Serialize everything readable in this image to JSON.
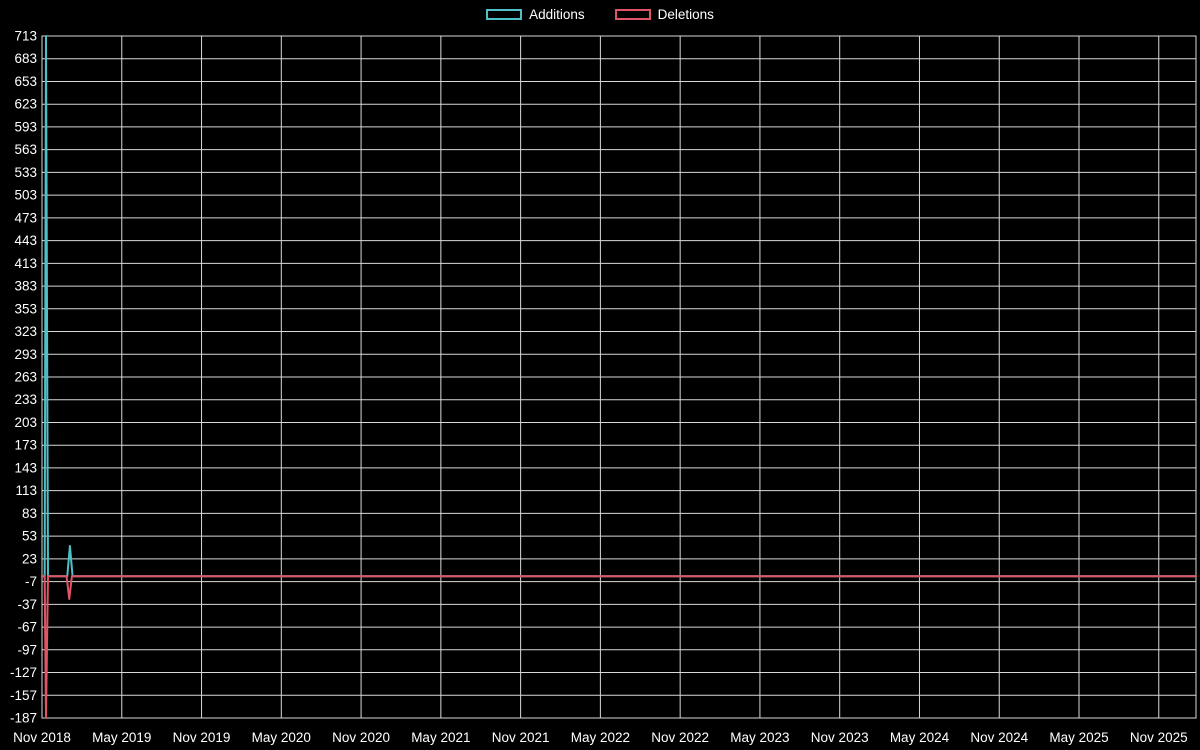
{
  "page": {
    "background": "#000000",
    "text_color": "#ffffff"
  },
  "legend": {
    "items": [
      {
        "label": "Additions",
        "color": "#4fc0c8"
      },
      {
        "label": "Deletions",
        "color": "#e05566"
      }
    ]
  },
  "chart_data": {
    "type": "line",
    "title": "",
    "xlabel": "",
    "ylabel": "",
    "x_unit": "months since Nov 2018",
    "xlim": [
      0,
      86.8
    ],
    "ylim": [
      -187,
      713
    ],
    "y_tick_interval": 30,
    "grid": true,
    "grid_color": "#d9d9d9",
    "legend_position": "top",
    "background": "#000000",
    "y_ticks": [
      713,
      683,
      653,
      623,
      593,
      563,
      533,
      503,
      473,
      443,
      413,
      383,
      353,
      323,
      293,
      263,
      233,
      203,
      173,
      143,
      113,
      83,
      53,
      23,
      -7,
      -37,
      -67,
      -97,
      -127,
      -157,
      -187
    ],
    "x_ticks": [
      {
        "label": "Nov 2018",
        "x": 0
      },
      {
        "label": "May 2019",
        "x": 6
      },
      {
        "label": "Nov 2019",
        "x": 12
      },
      {
        "label": "May 2020",
        "x": 18
      },
      {
        "label": "Nov 2020",
        "x": 24
      },
      {
        "label": "May 2021",
        "x": 30
      },
      {
        "label": "Nov 2021",
        "x": 36
      },
      {
        "label": "May 2022",
        "x": 42
      },
      {
        "label": "Nov 2022",
        "x": 48
      },
      {
        "label": "May 2023",
        "x": 54
      },
      {
        "label": "Nov 2023",
        "x": 60
      },
      {
        "label": "May 2024",
        "x": 66
      },
      {
        "label": "Nov 2024",
        "x": 72
      },
      {
        "label": "May 2025",
        "x": 78
      },
      {
        "label": "Nov 2025",
        "x": 84
      }
    ],
    "series": [
      {
        "name": "Additions",
        "color": "#4fc0c8",
        "points": [
          [
            0,
            0
          ],
          [
            0.2,
            0
          ],
          [
            0.3,
            713
          ],
          [
            0.45,
            0
          ],
          [
            1.9,
            0
          ],
          [
            2.1,
            40
          ],
          [
            2.3,
            0
          ],
          [
            86.8,
            0
          ]
        ]
      },
      {
        "name": "Deletions",
        "color": "#e05566",
        "points": [
          [
            0,
            0
          ],
          [
            0.2,
            0
          ],
          [
            0.3,
            -187
          ],
          [
            0.45,
            0
          ],
          [
            1.85,
            0
          ],
          [
            2.05,
            -30
          ],
          [
            2.25,
            0
          ],
          [
            86.8,
            0
          ]
        ]
      }
    ]
  }
}
